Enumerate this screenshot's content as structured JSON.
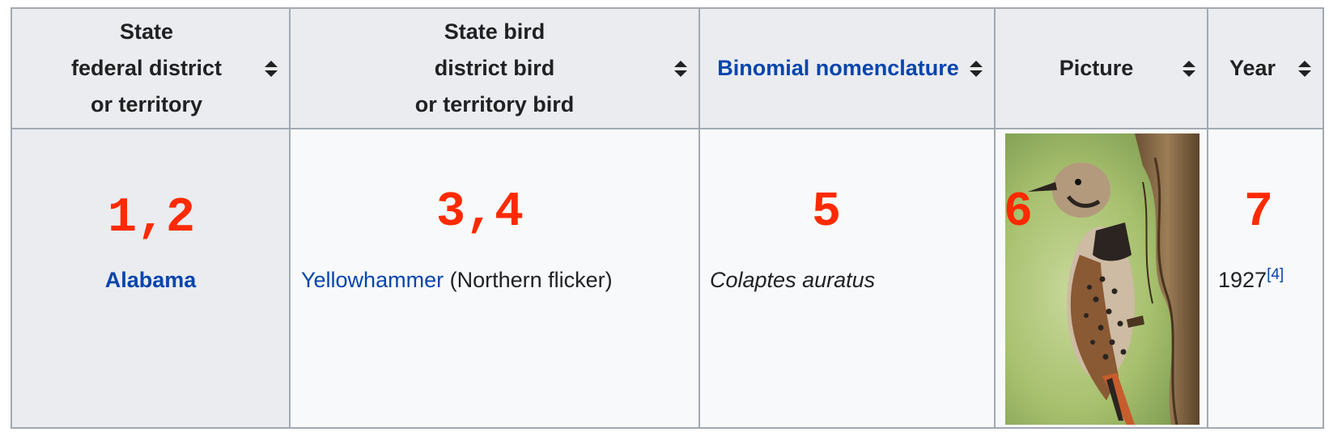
{
  "table": {
    "headers": {
      "state": [
        "State",
        "federal district",
        "or territory"
      ],
      "bird": [
        "State bird",
        "district bird",
        "or territory bird"
      ],
      "binomial": "Binomial nomenclature",
      "picture": "Picture",
      "year": "Year"
    },
    "row": {
      "state": "Alabama",
      "bird_link": "Yellowhammer",
      "bird_rest": " (Northern flicker)",
      "binomial": "Colaptes auratus",
      "picture_icon": "northern-flicker-photo",
      "year": "1927",
      "year_ref": "[4]"
    }
  },
  "markers": {
    "state": "1,2",
    "bird": "3,4",
    "binomial": "5",
    "picture": "6",
    "year": "7"
  },
  "colors": {
    "header_bg": "#eaecf0",
    "cell_bg": "#f8f9fa",
    "border": "#a2a9b1",
    "link": "#0645ad",
    "marker": "#ff2a00"
  }
}
